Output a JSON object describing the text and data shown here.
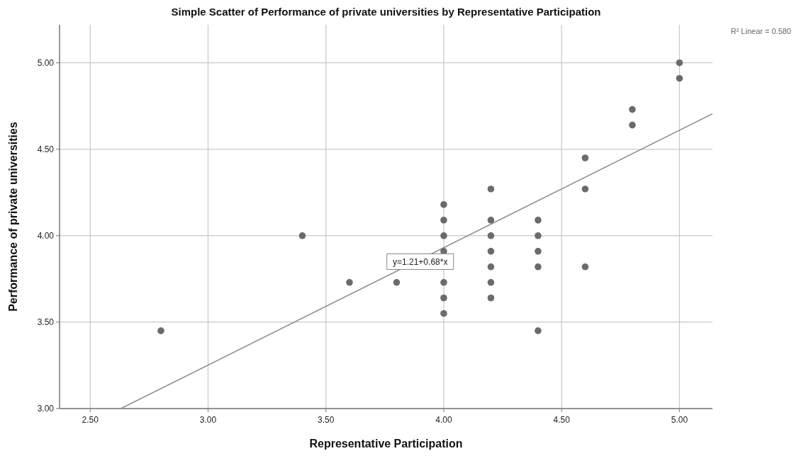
{
  "chart_data": {
    "type": "scatter",
    "title": "Simple Scatter of Performance of private universities by Representative Participation",
    "xlabel": "Representative Participation",
    "ylabel": "Performance of private universities",
    "annotations": [
      "R² Linear = 0.580",
      {
        "text": "y=1.21+0.68*x",
        "x": 3.9,
        "y": 3.85
      }
    ],
    "series": [
      {
        "marker": "circle",
        "color": "#6b6b6b",
        "x": [
          2.8,
          3.4,
          3.6,
          3.8,
          4.0,
          4.0,
          4.0,
          4.0,
          4.0,
          4.0,
          4.0,
          4.2,
          4.2,
          4.2,
          4.2,
          4.2,
          4.2,
          4.2,
          4.4,
          4.4,
          4.4,
          4.4,
          4.4,
          4.6,
          4.6,
          4.6,
          4.8,
          4.8,
          5.0,
          5.0
        ],
        "values": [
          3.45,
          4.0,
          3.73,
          3.73,
          4.18,
          4.09,
          4.0,
          3.91,
          3.73,
          3.64,
          3.55,
          4.27,
          4.09,
          4.0,
          3.91,
          3.82,
          3.73,
          3.64,
          4.09,
          4.0,
          3.91,
          3.82,
          3.45,
          4.45,
          4.27,
          3.82,
          4.73,
          4.64,
          5.0,
          4.91
        ]
      },
      {
        "type": "line",
        "color": "#8c8c8c",
        "x": [
          2.63,
          5.14
        ],
        "values": [
          3.0,
          4.705
        ]
      }
    ],
    "xlim": [
      2.37,
      5.14
    ],
    "ylim": [
      3.0,
      5.22
    ],
    "xticks": [
      {
        "value": 2.5,
        "label": "2.50"
      },
      {
        "value": 3,
        "label": "3.00"
      },
      {
        "value": 3.5,
        "label": "3.50"
      },
      {
        "value": 4,
        "label": "4.00"
      },
      {
        "value": 4.5,
        "label": "4.50"
      },
      {
        "value": 5,
        "label": "5.00"
      }
    ],
    "yticks": [
      {
        "value": 3,
        "label": "3.00"
      },
      {
        "value": 3.5,
        "label": "3.50"
      },
      {
        "value": 4,
        "label": "4.00"
      },
      {
        "value": 4.5,
        "label": "4.50"
      },
      {
        "value": 5,
        "label": "5.00"
      }
    ],
    "grid": true
  }
}
